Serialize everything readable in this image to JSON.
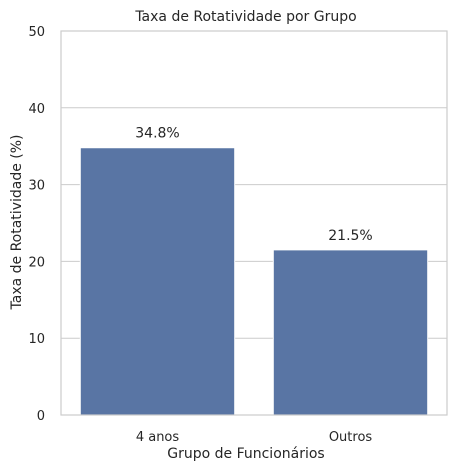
{
  "chart_data": {
    "type": "bar",
    "title": "Taxa de Rotatividade por Grupo",
    "xlabel": "Grupo de Funcionários",
    "ylabel": "Taxa de Rotatividade (%)",
    "categories": [
      "4 anos",
      "Outros"
    ],
    "values": [
      34.8,
      21.5
    ],
    "data_labels": [
      "34.8%",
      "21.5%"
    ],
    "ylim": [
      0,
      50
    ],
    "yticks": [
      0,
      10,
      20,
      30,
      40,
      50
    ],
    "grid": "horizontal",
    "bar_color": "#5975a4",
    "grid_color": "#cccccc",
    "frame_color": "#cccccc",
    "text_color": "#262626"
  }
}
